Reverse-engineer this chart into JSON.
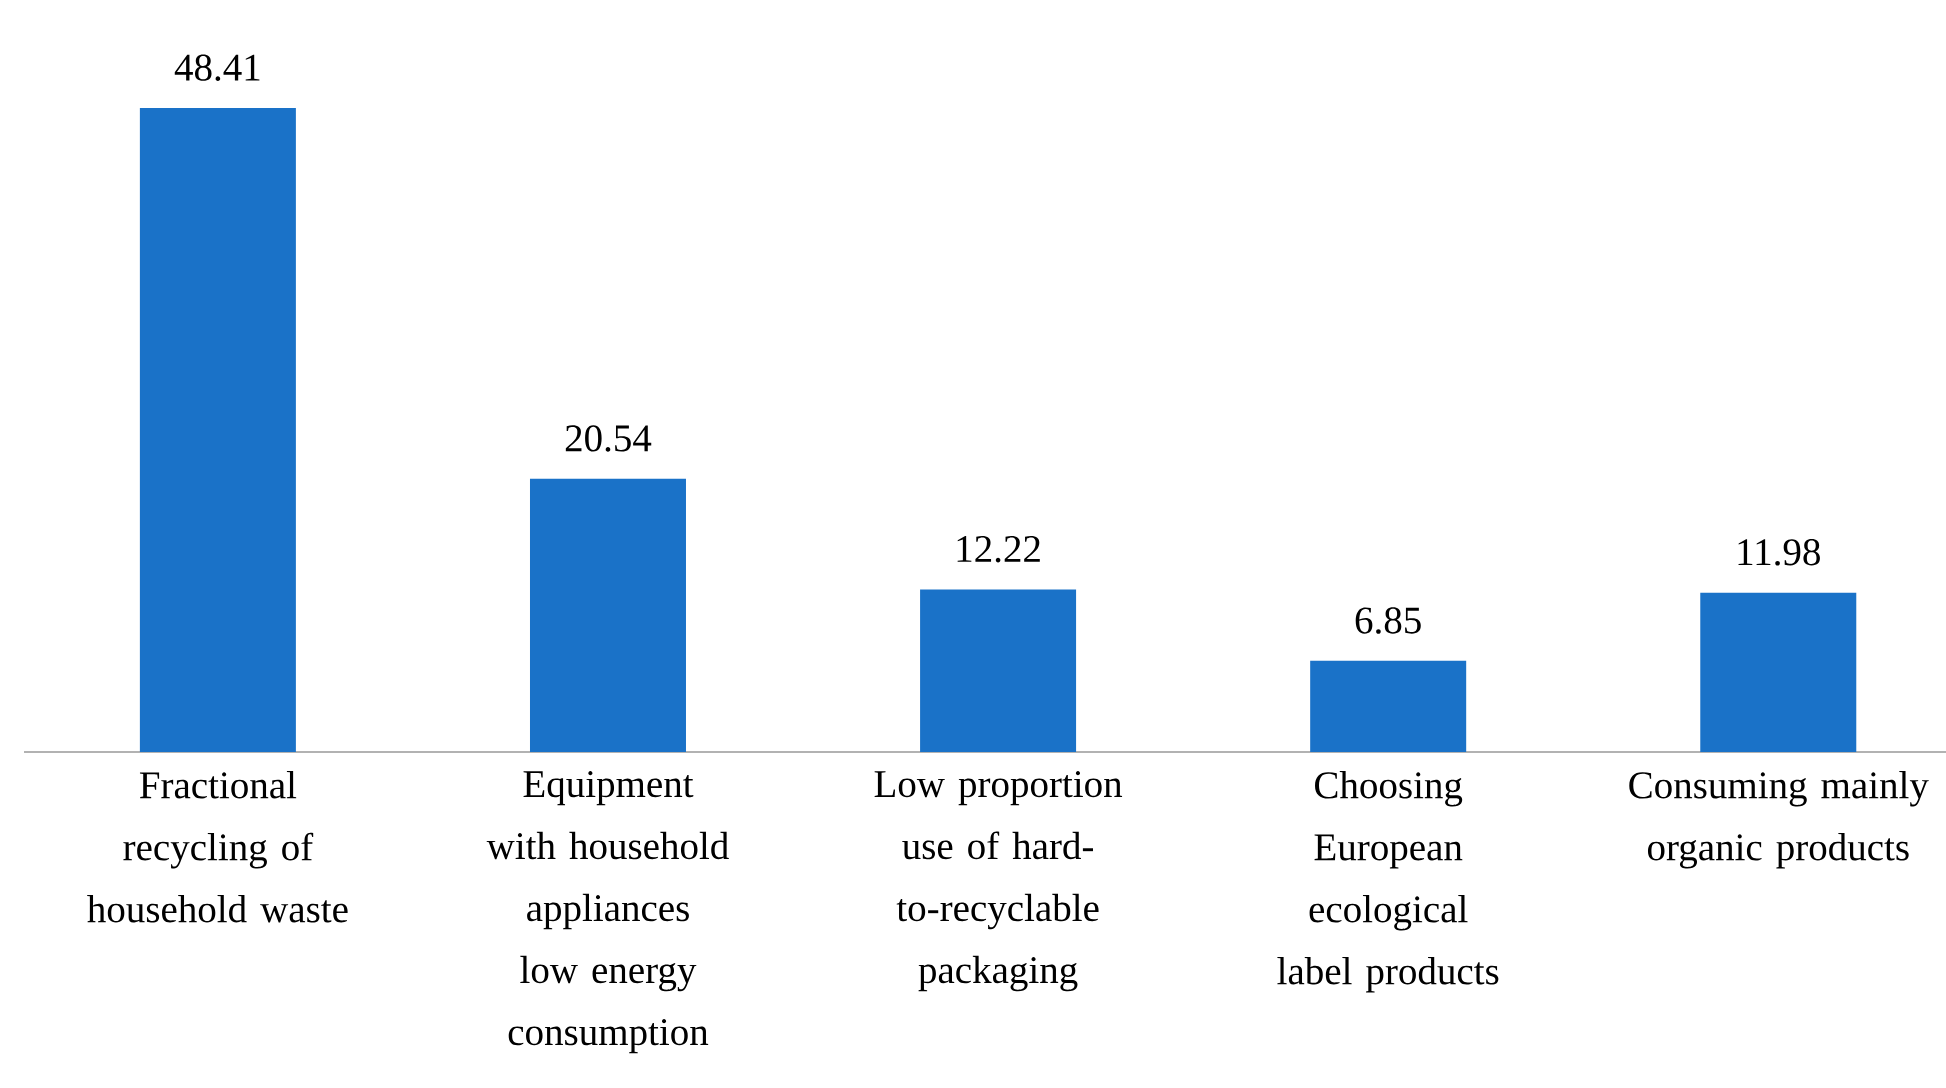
{
  "chart_data": {
    "type": "bar",
    "categories": [
      "Fractional recycling of household waste",
      "Equipment with household appliances low energy consumption",
      "Low proportion use of hard-to-recyclable packaging",
      "Choosing European ecological label products",
      "Consuming mainly organic products"
    ],
    "values": [
      48.41,
      20.54,
      12.22,
      6.85,
      11.98
    ],
    "color": "#1a72c8",
    "data_labels": true
  }
}
